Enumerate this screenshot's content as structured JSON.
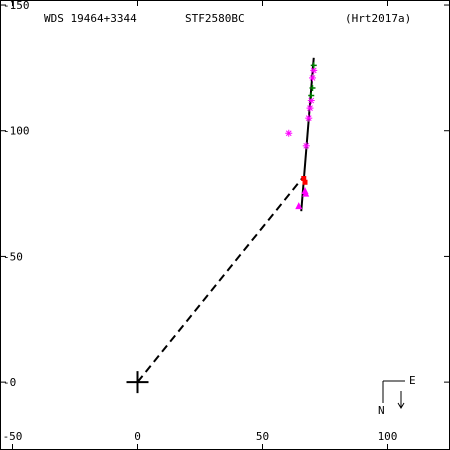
{
  "header": {
    "wds": "WDS 19464+3344",
    "discoverer": "STF2580BC",
    "reference": "(Hrt2017a)"
  },
  "compass": {
    "east": "E",
    "north": "N"
  },
  "chart_data": {
    "type": "scatter",
    "title": "",
    "xlabel": "",
    "ylabel": "",
    "xlim": [
      -55,
      125
    ],
    "ylim": [
      152,
      -27
    ],
    "x_ticks": [
      {
        "value": -50,
        "label": "-50"
      },
      {
        "value": 0,
        "label": "0"
      },
      {
        "value": 50,
        "label": "50"
      },
      {
        "value": 100,
        "label": "100"
      }
    ],
    "y_ticks": [
      {
        "value": 150,
        "label": "-150"
      },
      {
        "value": 100,
        "label": "-100"
      },
      {
        "value": 50,
        "label": "-50"
      },
      {
        "value": 0,
        "label": "-0"
      }
    ],
    "primary": {
      "x": 0,
      "y": 0
    },
    "orbit_line": [
      [
        65.5,
        68
      ],
      [
        70.5,
        129
      ]
    ],
    "connector": [
      [
        0,
        0
      ],
      [
        65.8,
        81
      ]
    ],
    "observations": [
      {
        "x": 60.5,
        "y": 99,
        "symbol": "asterisk",
        "color": "#ff00ff"
      },
      {
        "x": 67.5,
        "y": 94,
        "symbol": "asterisk",
        "color": "#ff00ff"
      },
      {
        "x": 68.5,
        "y": 105,
        "symbol": "asterisk",
        "color": "#ff00ff"
      },
      {
        "x": 69,
        "y": 109,
        "symbol": "asterisk",
        "color": "#ff00ff"
      },
      {
        "x": 69.5,
        "y": 112,
        "symbol": "asterisk",
        "color": "#ff00ff"
      },
      {
        "x": 70,
        "y": 121,
        "symbol": "asterisk",
        "color": "#ff00ff"
      },
      {
        "x": 70.5,
        "y": 124,
        "symbol": "asterisk",
        "color": "#ff00ff"
      },
      {
        "x": 69.5,
        "y": 114,
        "symbol": "plus",
        "color": "#008000"
      },
      {
        "x": 70,
        "y": 117,
        "symbol": "plus",
        "color": "#008000"
      },
      {
        "x": 70.5,
        "y": 126,
        "symbol": "plus",
        "color": "#008000"
      },
      {
        "x": 66.5,
        "y": 81,
        "symbol": "square",
        "color": "#ff0000"
      },
      {
        "x": 67,
        "y": 79.5,
        "symbol": "square",
        "color": "#ff0000"
      },
      {
        "x": 67,
        "y": 76,
        "symbol": "triangle",
        "color": "#ff00ff"
      },
      {
        "x": 67.3,
        "y": 75,
        "symbol": "triangle",
        "color": "#ff00ff"
      },
      {
        "x": 64.5,
        "y": 70,
        "symbol": "triangle",
        "color": "#ff00ff"
      }
    ]
  }
}
